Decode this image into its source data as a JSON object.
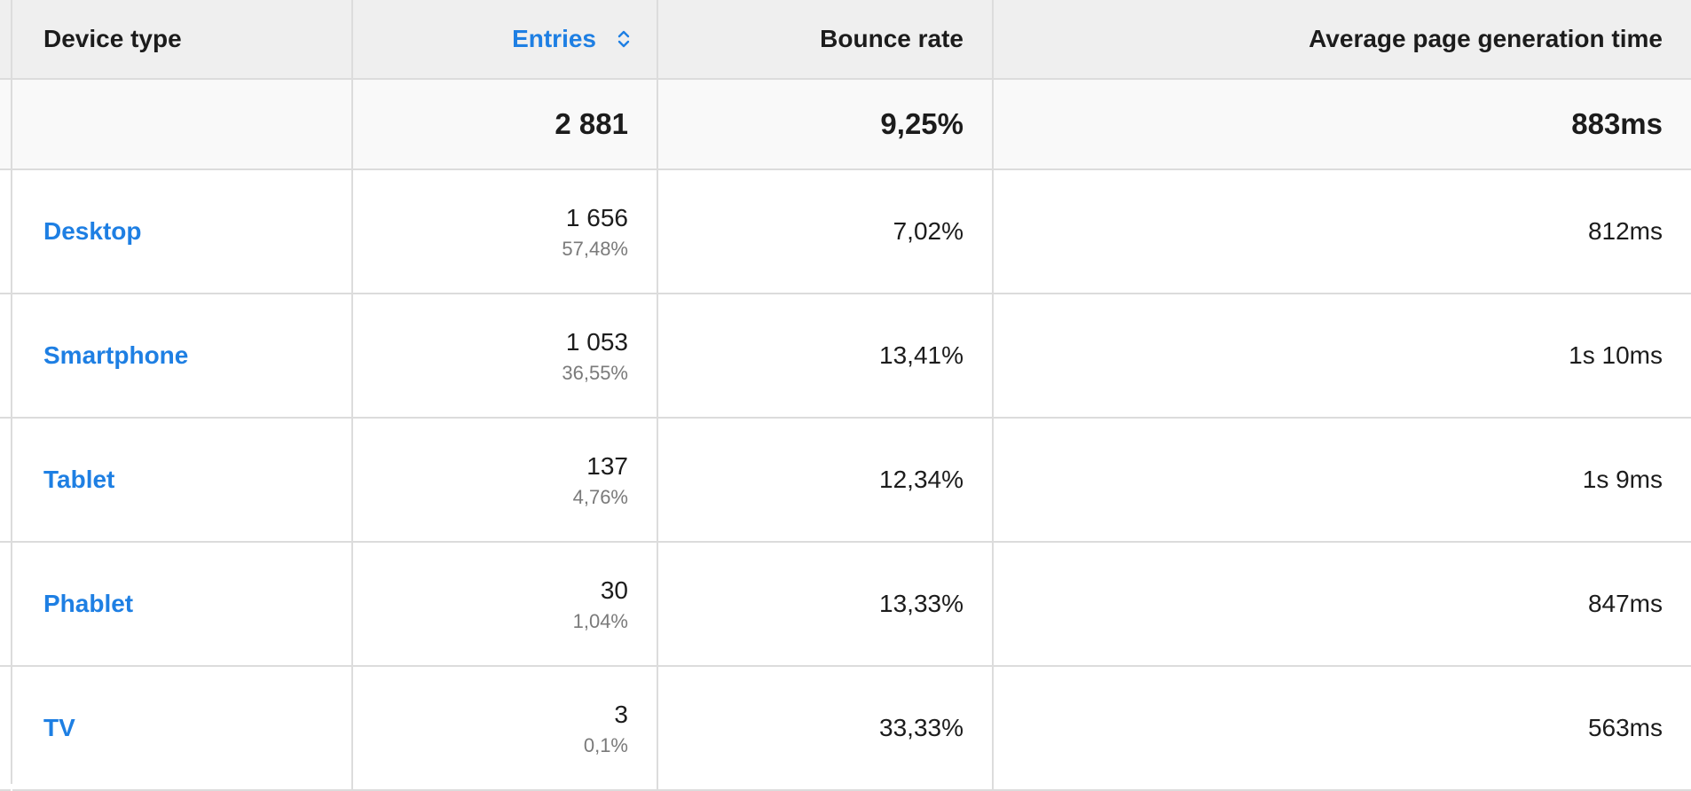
{
  "table": {
    "headers": {
      "device_type": "Device type",
      "entries": "Entries",
      "bounce_rate": "Bounce rate",
      "avg_gen_time": "Average page generation time"
    },
    "sorted_column_icon": "sort-updown-icon",
    "accent_color": "#1e7fe3",
    "totals": {
      "entries": "2 881",
      "bounce_rate": "9,25%",
      "avg_gen_time": "883ms"
    },
    "rows": [
      {
        "device": "Desktop",
        "entries": "1 656",
        "entries_pct": "57,48%",
        "bounce_rate": "7,02%",
        "avg_gen_time": "812ms"
      },
      {
        "device": "Smartphone",
        "entries": "1 053",
        "entries_pct": "36,55%",
        "bounce_rate": "13,41%",
        "avg_gen_time": "1s 10ms"
      },
      {
        "device": "Tablet",
        "entries": "137",
        "entries_pct": "4,76%",
        "bounce_rate": "12,34%",
        "avg_gen_time": "1s 9ms"
      },
      {
        "device": "Phablet",
        "entries": "30",
        "entries_pct": "1,04%",
        "bounce_rate": "13,33%",
        "avg_gen_time": "847ms"
      },
      {
        "device": "TV",
        "entries": "3",
        "entries_pct": "0,1%",
        "bounce_rate": "33,33%",
        "avg_gen_time": "563ms"
      }
    ]
  }
}
